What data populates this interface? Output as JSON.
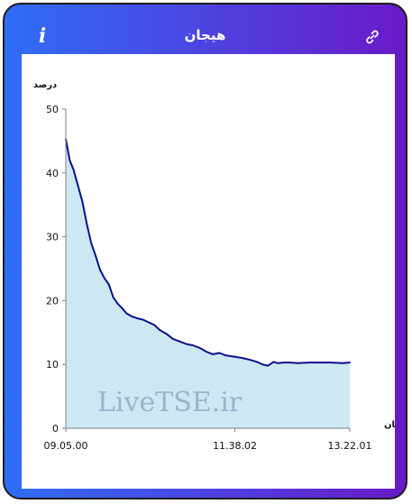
{
  "header": {
    "title": "هیجان",
    "info_icon": "info-icon",
    "link_icon": "link-icon"
  },
  "colors": {
    "gradient_start": "#2f6ef7",
    "gradient_end": "#6a19c9",
    "line": "#0a0f8c",
    "area": "#cde8f2",
    "watermark": "#9fb1cc"
  },
  "chart_data": {
    "type": "area",
    "ylabel": "درصد",
    "xlabel": "زمان",
    "watermark": "LiveTSE.ir",
    "ylim": [
      0,
      50
    ],
    "yticks": [
      0,
      10,
      20,
      30,
      40,
      50
    ],
    "xlim": [
      "09.05.00",
      "13.22.01"
    ],
    "xtick_labels": [
      "09.05.00",
      "11.38.02",
      "13.22.01"
    ],
    "grid": false,
    "series": [
      {
        "x": [
          "09.05.00",
          "09.08.30",
          "09.12.00",
          "09.16.00",
          "09.20.00",
          "09.24.00",
          "09.28.00",
          "09.32.00",
          "09.36.00",
          "09.40.00",
          "09.44.00",
          "09.48.00",
          "09.52.00",
          "09.56.00",
          "10.00.00",
          "10.05.00",
          "10.10.00",
          "10.15.00",
          "10.20.00",
          "10.25.00",
          "10.30.00",
          "10.36.00",
          "10.42.00",
          "10.48.00",
          "10.54.00",
          "11.00.00",
          "11.06.00",
          "11.12.00",
          "11.18.00",
          "11.24.00",
          "11.30.00",
          "11.38.02",
          "11.45.00",
          "11.52.00",
          "11.58.00",
          "12.03.00",
          "12.08.00",
          "12.13.00",
          "12.17.00",
          "12.22.00",
          "12.28.00",
          "12.35.00",
          "12.45.00",
          "12.55.00",
          "13.05.00",
          "13.15.00",
          "13.22.01"
        ],
        "y": [
          45.3,
          42.0,
          40.5,
          38.0,
          35.5,
          32.0,
          29.0,
          27.0,
          24.8,
          23.5,
          22.5,
          20.5,
          19.5,
          18.8,
          18.0,
          17.5,
          17.2,
          17.0,
          16.6,
          16.2,
          15.4,
          14.8,
          14.0,
          13.6,
          13.2,
          13.0,
          12.6,
          12.0,
          11.6,
          11.8,
          11.4,
          11.2,
          11.0,
          10.7,
          10.4,
          10.0,
          9.8,
          10.4,
          10.2,
          10.3,
          10.3,
          10.2,
          10.3,
          10.3,
          10.3,
          10.2,
          10.3
        ]
      }
    ]
  }
}
